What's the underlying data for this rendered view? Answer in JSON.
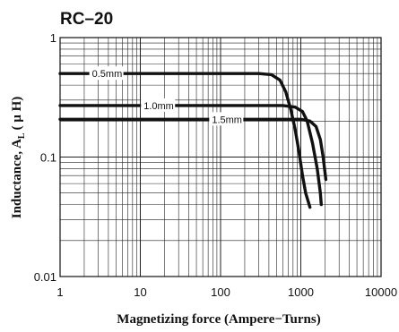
{
  "chart_data": {
    "type": "line",
    "title": "RC–20",
    "xlabel": "Magnetizing force (Ampere−Turns)",
    "ylabel": "Inductance, A",
    "ylabel_sub": "L",
    "ylabel_unit": "( μ H)",
    "x_scale": "log",
    "y_scale": "log",
    "xlim": [
      1,
      10000
    ],
    "ylim": [
      0.01,
      1
    ],
    "grid": true,
    "x_ticks": [
      {
        "value": 1,
        "label": "1"
      },
      {
        "value": 10,
        "label": "10"
      },
      {
        "value": 100,
        "label": "100"
      },
      {
        "value": 1000,
        "label": "1000"
      },
      {
        "value": 10000,
        "label": "10000"
      }
    ],
    "y_ticks": [
      {
        "value": 0.01,
        "label": "0.01"
      },
      {
        "value": 0.1,
        "label": "0.1"
      },
      {
        "value": 1,
        "label": "1"
      }
    ],
    "series": [
      {
        "name": "0.5mm",
        "label_at": [
          2.5,
          0.5
        ],
        "points": [
          [
            1,
            0.5
          ],
          [
            10,
            0.5
          ],
          [
            100,
            0.5
          ],
          [
            300,
            0.5
          ],
          [
            430,
            0.49
          ],
          [
            550,
            0.44
          ],
          [
            650,
            0.35
          ],
          [
            750,
            0.25
          ],
          [
            850,
            0.17
          ],
          [
            950,
            0.11
          ],
          [
            1050,
            0.07
          ],
          [
            1150,
            0.05
          ],
          [
            1300,
            0.038
          ]
        ]
      },
      {
        "name": "1.0mm",
        "label_at": [
          11,
          0.27
        ],
        "points": [
          [
            1,
            0.27
          ],
          [
            10,
            0.27
          ],
          [
            100,
            0.27
          ],
          [
            600,
            0.27
          ],
          [
            850,
            0.262
          ],
          [
            1050,
            0.24
          ],
          [
            1200,
            0.2
          ],
          [
            1400,
            0.13
          ],
          [
            1600,
            0.08
          ],
          [
            1750,
            0.05
          ],
          [
            1800,
            0.04
          ]
        ]
      },
      {
        "name": "1.5mm",
        "label_at": [
          78,
          0.207
        ],
        "points": [
          [
            1,
            0.207
          ],
          [
            10,
            0.207
          ],
          [
            100,
            0.207
          ],
          [
            1000,
            0.207
          ],
          [
            1300,
            0.2
          ],
          [
            1550,
            0.18
          ],
          [
            1750,
            0.14
          ],
          [
            1900,
            0.1
          ],
          [
            2000,
            0.075
          ],
          [
            2050,
            0.065
          ]
        ]
      }
    ]
  }
}
